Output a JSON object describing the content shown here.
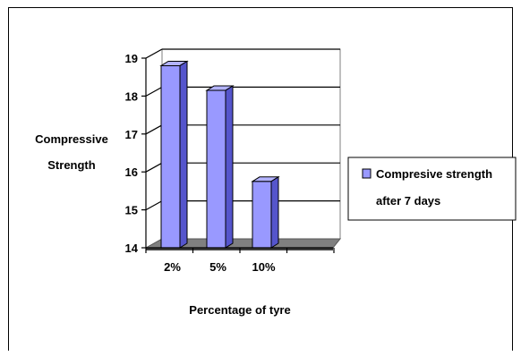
{
  "chart_data": {
    "type": "bar",
    "style": "3d-clustered-column",
    "title": "",
    "xlabel": "Percentage of tyre",
    "ylabel_lines": [
      "Compressive",
      "Strength"
    ],
    "categories": [
      "2%",
      "5%",
      "10%"
    ],
    "yticks": [
      "14",
      "15",
      "16",
      "17",
      "18",
      "19"
    ],
    "ylim": [
      14,
      19
    ],
    "grid": true,
    "legend_position": "right",
    "series": [
      {
        "name_lines": [
          "Compresive strength",
          "after 7 days"
        ],
        "color": "#9999ff",
        "values": [
          18.8,
          18.15,
          15.75
        ]
      }
    ]
  }
}
